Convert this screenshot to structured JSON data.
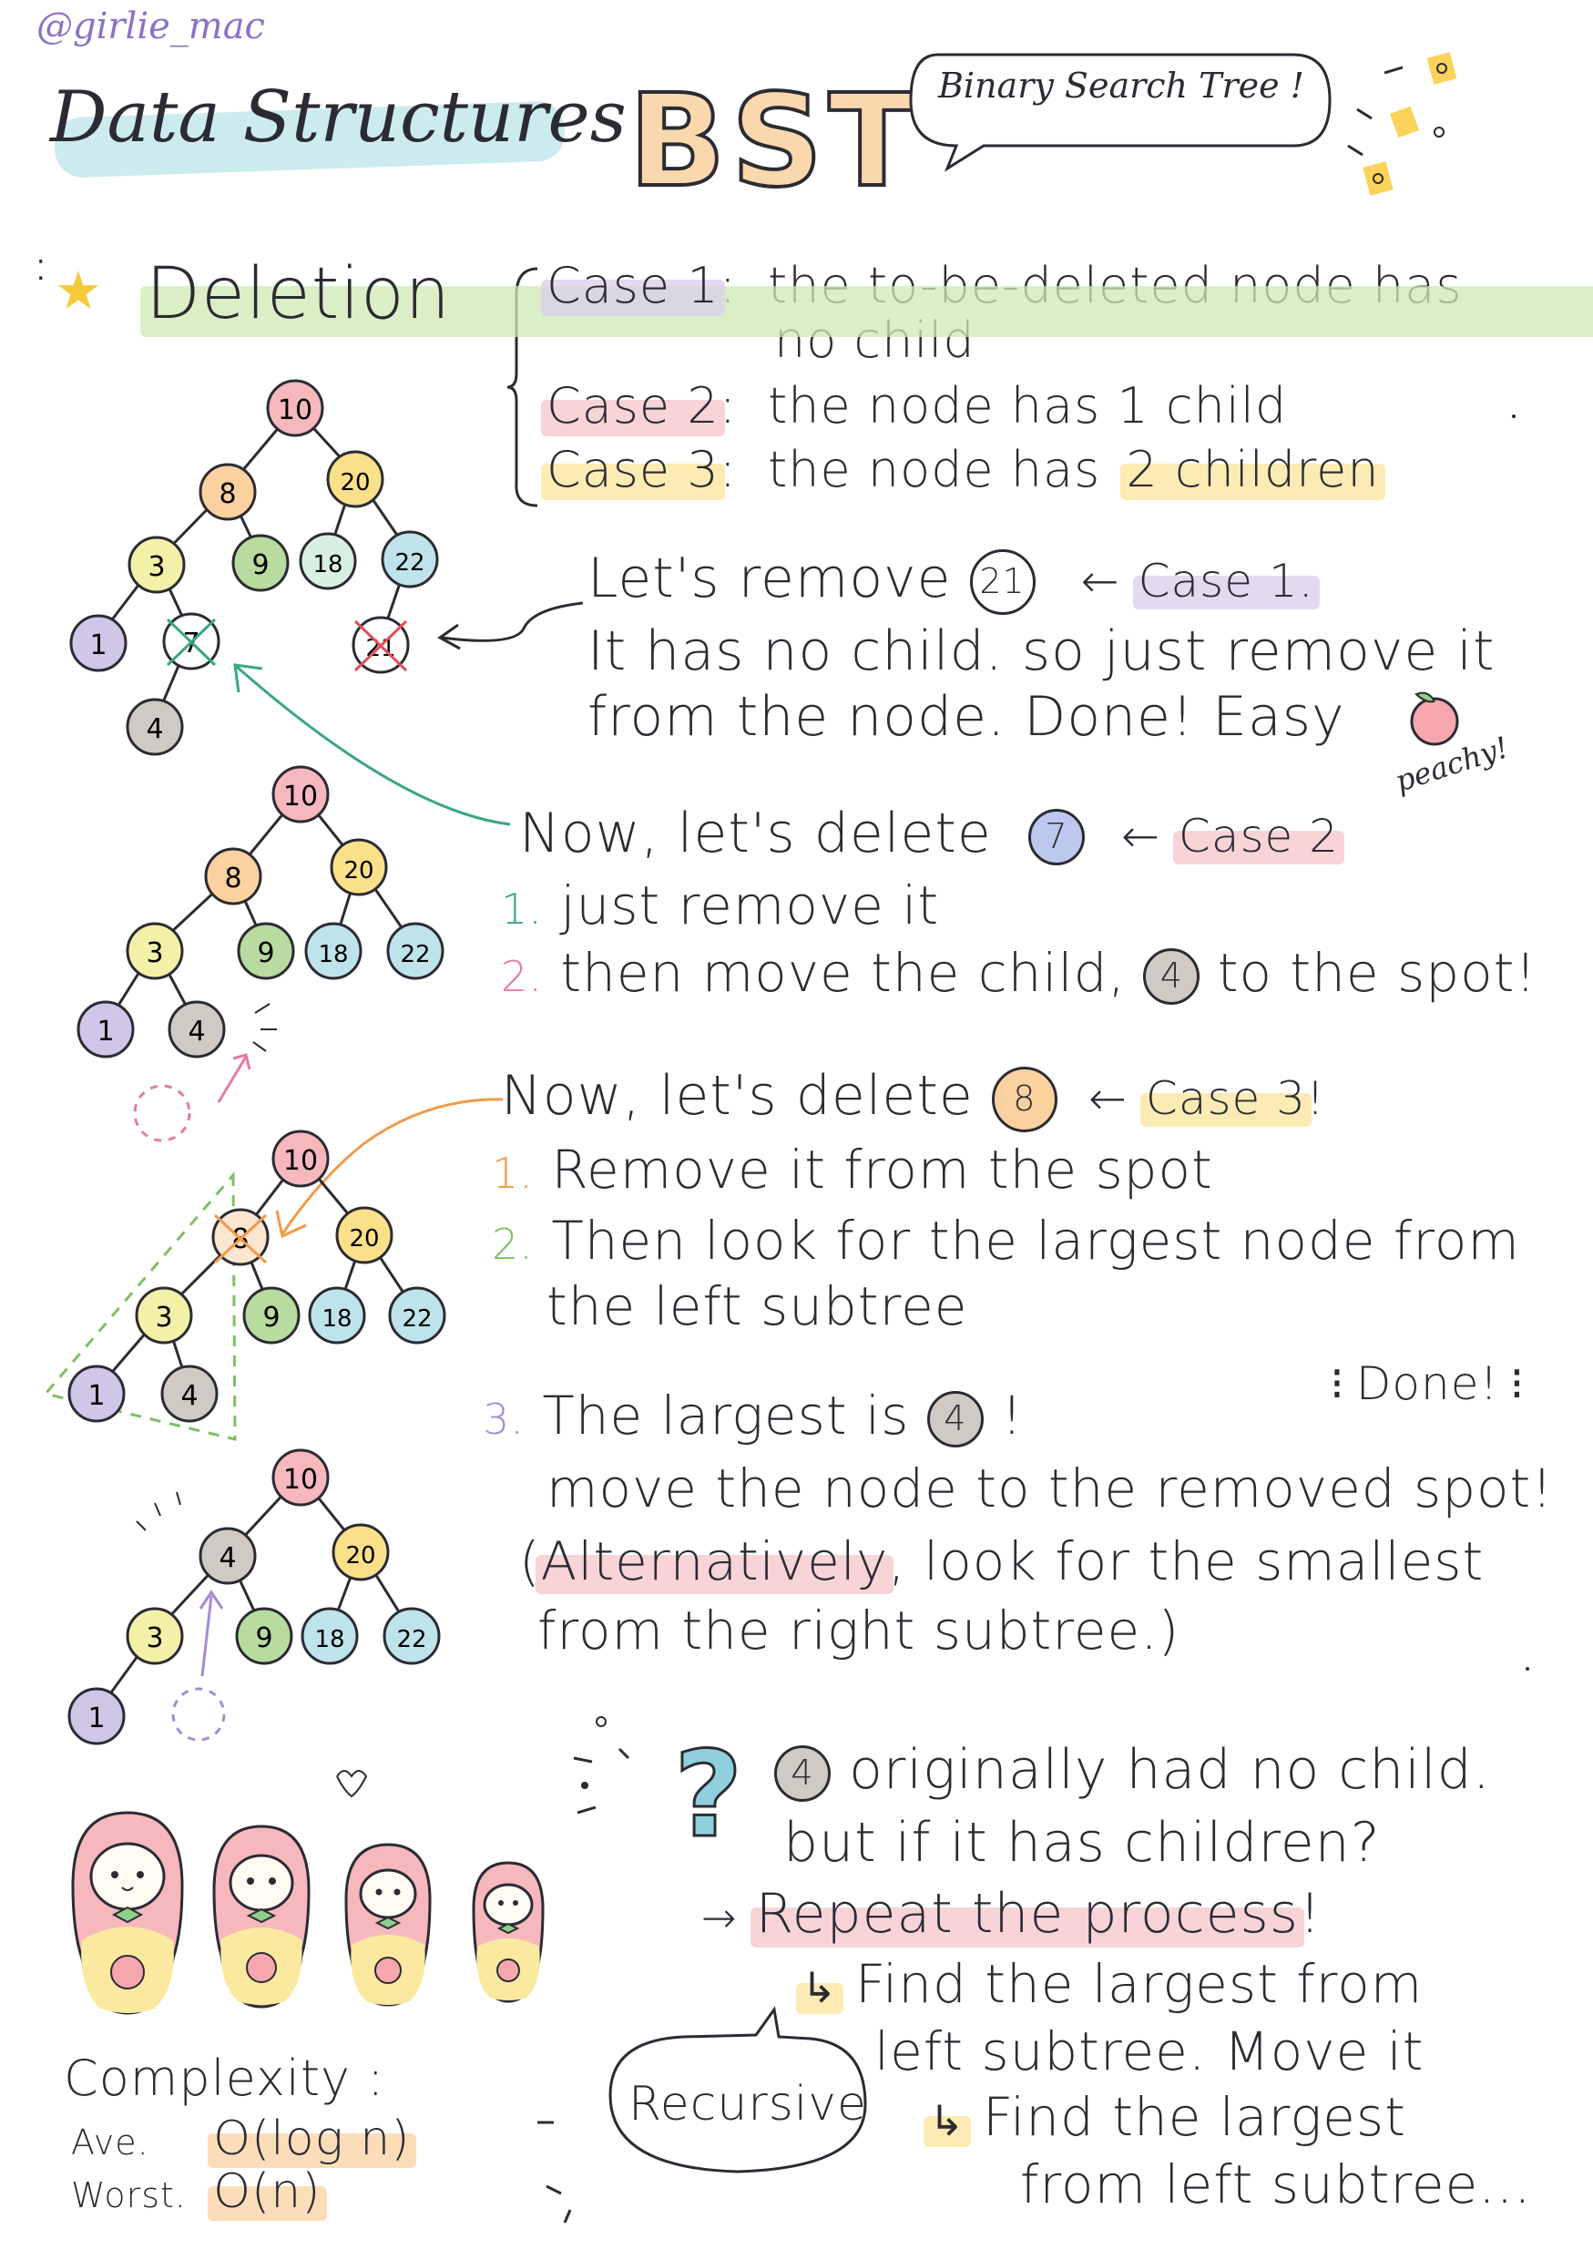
{
  "handle": "@girlie_mac",
  "header": {
    "series": "Data Structures",
    "title": "BST",
    "bubble": "Binary Search Tree !"
  },
  "section": {
    "title": "Deletion"
  },
  "cases": [
    {
      "label": "Case 1",
      "colon": ":",
      "text": "the to-be-deleted node has",
      "text2": "no child"
    },
    {
      "label": "Case 2",
      "colon": ":",
      "text": "the node has 1 child"
    },
    {
      "label": "Case 3",
      "colon": ":",
      "text": "the node has",
      "highlight": "2 children"
    }
  ],
  "step1": {
    "line1_pre": "Let's remove",
    "node": "21",
    "case": "Case 1.",
    "line2": "It has no child. so just remove it",
    "line3": "from the node.  Done!  Easy",
    "peachy": "peachy!"
  },
  "step2": {
    "line1_pre": "Now, let's delete",
    "node": "7",
    "case": "Case 2",
    "n1": "1.",
    "item1": "just remove it",
    "n2": "2.",
    "item2_pre": "then move the child,",
    "item2_node": "4",
    "item2_post": "to the spot!"
  },
  "step3": {
    "line1_pre": "Now, let's delete",
    "node": "8",
    "case": "Case 3",
    "bang": "!",
    "n1": "1.",
    "item1": "Remove it from the spot",
    "n2": "2.",
    "item2a": "Then look for the largest node from",
    "item2b": "the left subtree",
    "done": "Done!",
    "n3": "3.",
    "item3_pre": "The largest is",
    "item3_node": "4",
    "item3_post": "!",
    "item3b": "move the node to the removed spot!",
    "alt1_pre": "(",
    "alt1_hl": "Alternatively",
    "alt1_post": ", look for the smallest",
    "alt2": "from the right subtree.)"
  },
  "question": {
    "mark": "?",
    "node": "4",
    "line1": "originally had no child.",
    "line2": "but if it has children?",
    "line3_arrow": "→",
    "line3_hl": "Repeat the process",
    "line3_post": "!",
    "line4": "Find the largest from",
    "line5": "left subtree. Move it",
    "line6": "Find the largest",
    "line7": "from left subtree...",
    "recursive": "Recursive"
  },
  "complexity": {
    "title": "Complexity :",
    "rows": [
      {
        "label": "Ave.",
        "value": "O(log n)"
      },
      {
        "label": "Worst.",
        "value": "O(n)"
      }
    ]
  },
  "trees": {
    "tree1": {
      "nodes": [
        "10",
        "8",
        "20",
        "3",
        "9",
        "18",
        "22",
        "1",
        "7",
        "21",
        "4"
      ]
    },
    "tree2": {
      "nodes": [
        "10",
        "8",
        "20",
        "3",
        "9",
        "18",
        "22",
        "1",
        "4"
      ]
    },
    "tree3": {
      "nodes": [
        "10",
        "8",
        "20",
        "3",
        "9",
        "18",
        "22",
        "1",
        "4"
      ]
    },
    "tree4": {
      "nodes": [
        "10",
        "4",
        "20",
        "3",
        "9",
        "18",
        "22",
        "1"
      ]
    }
  },
  "colors": {
    "pink": "#f6b8bd",
    "orange": "#fbd1a0",
    "yellow": "#fbe08a",
    "lightyellow": "#f3f0a8",
    "green": "#b8dba0",
    "blue": "#bfe3ea",
    "purple": "#cfc6e8",
    "gray": "#cfcac3",
    "teal": "#8fd0dc",
    "accentGreen": "#3aa77d",
    "accentOrange": "#f29a4a",
    "accentPink": "#e77aa0",
    "accentPurple": "#a58bd0"
  }
}
